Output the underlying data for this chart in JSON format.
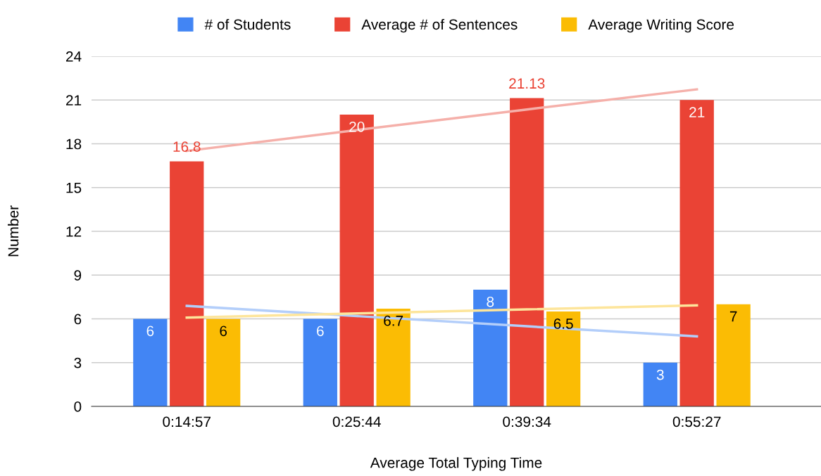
{
  "chart_data": {
    "type": "bar",
    "xlabel": "Average Total Typing Time",
    "ylabel": "Number",
    "categories": [
      "0:14:57",
      "0:25:44",
      "0:39:34",
      "0:55:27"
    ],
    "series": [
      {
        "name": "# of Students",
        "color": "#4285f4",
        "values": [
          6,
          6,
          8,
          3
        ],
        "value_labels": [
          "6",
          "6",
          "8",
          "3"
        ]
      },
      {
        "name": "Average # of Sentences",
        "color": "#ea4335",
        "values": [
          16.8,
          20,
          21.13,
          21
        ],
        "value_labels": [
          "16.8",
          "20",
          "21.13",
          "21"
        ]
      },
      {
        "name": "Average Writing Score",
        "color": "#fbbc04",
        "values": [
          6,
          6.7,
          6.5,
          7
        ],
        "value_labels": [
          "6",
          "6.7",
          "6.5",
          "7"
        ]
      },
      {
        "type": "line",
        "color": "#b3cefa",
        "values": [
          6.89,
          6.19,
          5.49,
          4.8
        ]
      },
      {
        "type": "line",
        "color": "#f5b0aa",
        "values": [
          17.51,
          18.94,
          20.35,
          21.73
        ]
      },
      {
        "type": "line",
        "color": "#fde59b",
        "values": [
          6.09,
          6.37,
          6.65,
          6.93
        ]
      }
    ],
    "ylim": [
      0,
      24
    ],
    "yticks": [
      0,
      3,
      6,
      9,
      12,
      15,
      18,
      21,
      24
    ],
    "grid": "y",
    "legend": "top"
  }
}
